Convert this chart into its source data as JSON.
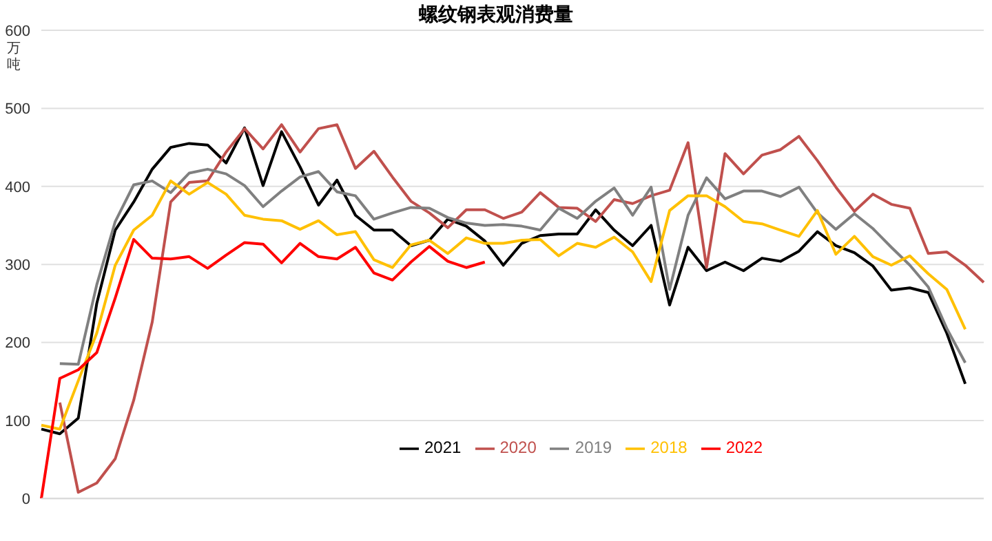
{
  "chart_data": {
    "type": "line",
    "title": "螺纹钢表观消费量",
    "ylabel": "万吨",
    "categories": [
      null,
      null,
      null,
      null,
      null,
      null,
      null,
      null,
      null,
      null,
      null,
      null,
      null,
      null,
      null,
      null,
      null,
      null,
      null,
      null,
      null,
      null,
      null,
      null,
      null,
      null,
      null,
      null,
      null,
      null,
      null,
      null,
      null,
      null,
      null,
      null,
      null,
      null,
      null,
      null,
      null,
      null,
      null,
      null,
      null,
      null,
      null,
      null,
      null,
      null,
      null,
      null
    ],
    "series": [
      {
        "name": "2021",
        "color": "#000000",
        "values": [
          89,
          83,
          103,
          250,
          344,
          380,
          422,
          450,
          455,
          453,
          430,
          475,
          401,
          470,
          425,
          376,
          408,
          363,
          344,
          344,
          324,
          331,
          358,
          349,
          330,
          299,
          327,
          337,
          339,
          339,
          370,
          344,
          324,
          350,
          248,
          322,
          292,
          303,
          292,
          308,
          304,
          317,
          342,
          324,
          315,
          298,
          267,
          270,
          264,
          212,
          147,
          null
        ]
      },
      {
        "name": "2020",
        "color": "#c0504d",
        "values": [
          null,
          123,
          8,
          20,
          51,
          126,
          226,
          380,
          405,
          407,
          444,
          474,
          448,
          479,
          444,
          474,
          479,
          423,
          445,
          412,
          381,
          366,
          347,
          370,
          370,
          359,
          367,
          392,
          373,
          372,
          355,
          383,
          378,
          388,
          395,
          456,
          296,
          442,
          416,
          440,
          447,
          464,
          433,
          399,
          368,
          390,
          377,
          372,
          314,
          316,
          299,
          277
        ]
      },
      {
        "name": "2019",
        "color": "#808080",
        "values": [
          null,
          173,
          172,
          274,
          355,
          402,
          407,
          392,
          417,
          422,
          416,
          401,
          374,
          394,
          412,
          419,
          393,
          388,
          358,
          366,
          373,
          372,
          360,
          353,
          350,
          351,
          349,
          344,
          372,
          359,
          381,
          398,
          363,
          399,
          268,
          363,
          411,
          384,
          394,
          394,
          387,
          399,
          366,
          345,
          365,
          346,
          322,
          299,
          271,
          218,
          174,
          null
        ]
      },
      {
        "name": "2018",
        "color": "#ffc000",
        "values": [
          94,
          89,
          151,
          212,
          299,
          344,
          363,
          407,
          390,
          405,
          390,
          363,
          358,
          356,
          345,
          356,
          338,
          342,
          306,
          296,
          325,
          331,
          314,
          334,
          327,
          327,
          331,
          332,
          311,
          327,
          322,
          335,
          316,
          278,
          369,
          388,
          388,
          374,
          355,
          352,
          344,
          336,
          369,
          313,
          336,
          310,
          299,
          311,
          288,
          268,
          217,
          null
        ]
      },
      {
        "name": "2022",
        "color": "#ff0000",
        "values": [
          0,
          154,
          165,
          187,
          257,
          332,
          308,
          307,
          310,
          295,
          312,
          328,
          326,
          302,
          327,
          310,
          307,
          322,
          289,
          280,
          303,
          323,
          304,
          296,
          303,
          null,
          null,
          null,
          null,
          null,
          null,
          null,
          null,
          null,
          null,
          null,
          null,
          null,
          null,
          null,
          null,
          null,
          null,
          null,
          null,
          null,
          null,
          null,
          null,
          null,
          null,
          null
        ]
      }
    ],
    "ylim": [
      0,
      600
    ],
    "yticks": [
      0,
      100,
      200,
      300,
      400,
      500,
      600
    ],
    "grid": "y",
    "legend": "bottom",
    "marker": "none",
    "line_style": "solid"
  }
}
